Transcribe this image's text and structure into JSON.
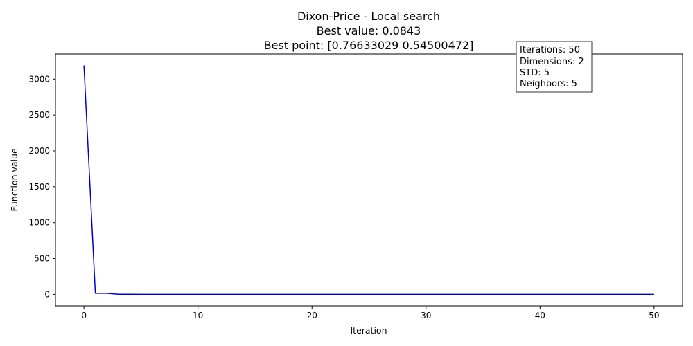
{
  "chart_data": {
    "type": "line",
    "title_lines": [
      "Dixon-Price - Local search",
      "Best value: 0.0843",
      "Best point: [0.76633029 0.54500472]"
    ],
    "xlabel": "Iteration",
    "ylabel": "Function value",
    "xlim": [
      -2.5,
      52.5
    ],
    "ylim": [
      -160,
      3350
    ],
    "x_ticks": [
      0,
      10,
      20,
      30,
      40,
      50
    ],
    "y_ticks": [
      0,
      500,
      1000,
      1500,
      2000,
      2500,
      3000
    ],
    "grid": false,
    "line_color": "#0000cd",
    "series": [
      {
        "x": [
          0,
          1,
          2,
          3,
          4,
          5,
          6,
          7,
          8,
          9,
          10,
          11,
          12,
          13,
          14,
          15,
          16,
          17,
          18,
          19,
          20,
          21,
          22,
          23,
          24,
          25,
          26,
          27,
          28,
          29,
          30,
          31,
          32,
          33,
          34,
          35,
          36,
          37,
          38,
          39,
          40,
          41,
          42,
          43,
          44,
          45,
          46,
          47,
          48,
          49,
          50
        ],
        "y": [
          3190,
          15,
          15,
          1,
          1,
          0.5,
          0.5,
          0.3,
          0.3,
          0.2,
          0.2,
          0.2,
          0.15,
          0.15,
          0.12,
          0.12,
          0.1,
          0.1,
          0.1,
          0.1,
          0.1,
          0.09,
          0.09,
          0.09,
          0.09,
          0.09,
          0.09,
          0.09,
          0.09,
          0.09,
          0.09,
          0.09,
          0.09,
          0.09,
          0.09,
          0.09,
          0.09,
          0.09,
          0.09,
          0.09,
          0.09,
          0.0843,
          0.0843,
          0.0843,
          0.0843,
          0.0843,
          0.0843,
          0.0843,
          0.0843,
          0.0843,
          0.0843
        ]
      }
    ],
    "info_box": {
      "placement": "top-right",
      "lines": [
        "Iterations: 50",
        "Dimensions: 2",
        "STD: 5",
        "Neighbors: 5"
      ]
    }
  }
}
